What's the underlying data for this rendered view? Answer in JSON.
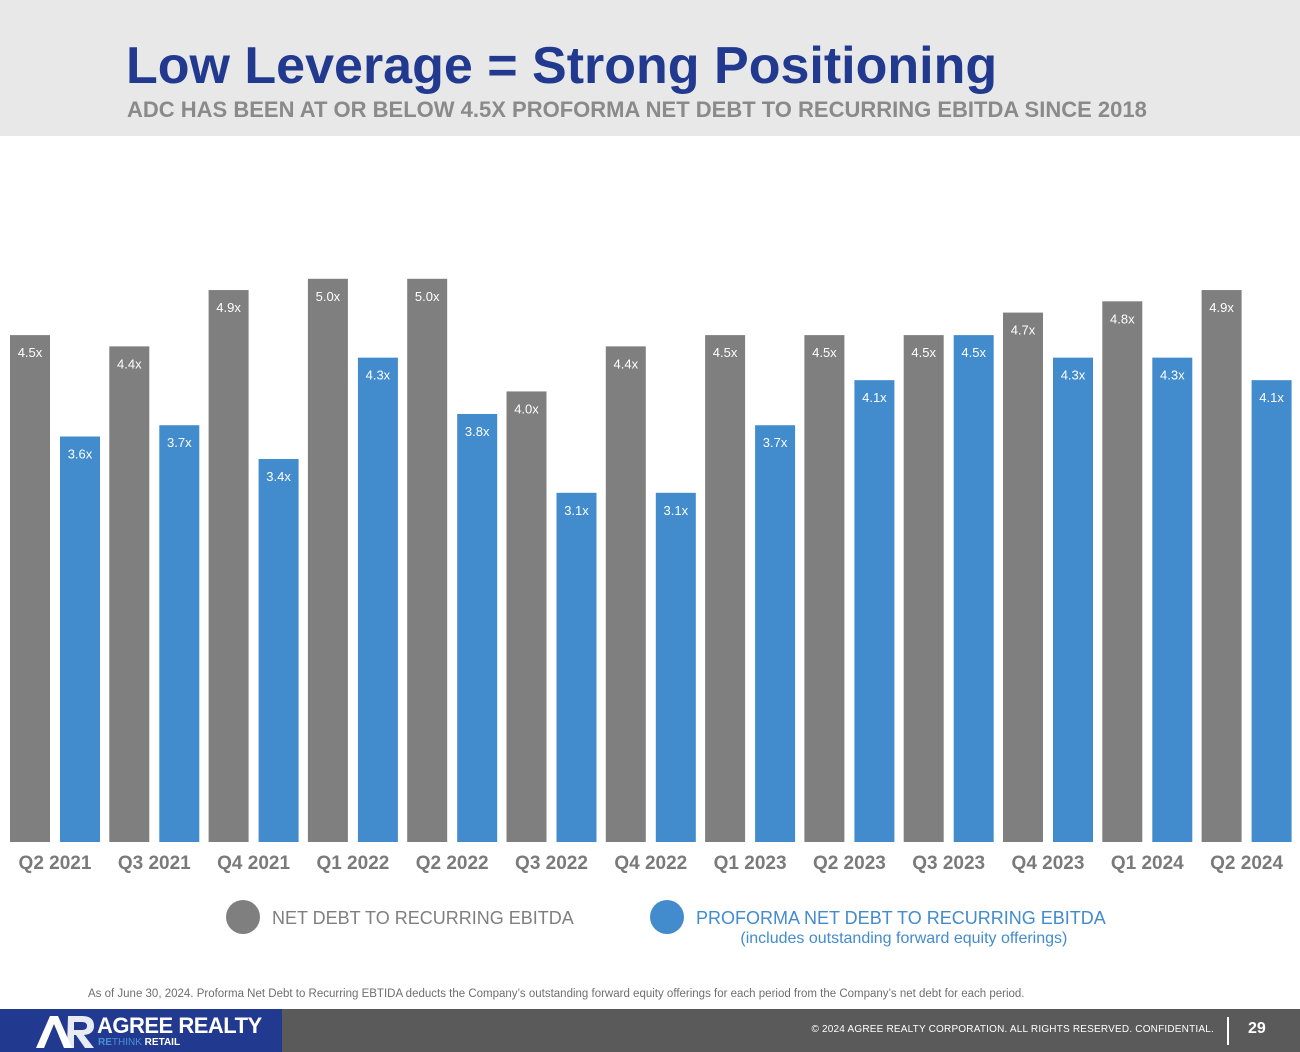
{
  "header": {
    "title": "Low Leverage = Strong Positioning",
    "subtitle": "ADC HAS BEEN AT OR BELOW 4.5X PROFORMA NET DEBT TO RECURRING EBITDA SINCE 2018"
  },
  "chart_data": {
    "type": "bar",
    "title": "",
    "xlabel": "",
    "ylabel": "",
    "ylim": [
      0,
      5.3
    ],
    "grid": false,
    "legend_position": "bottom",
    "categories": [
      "Q2 2021",
      "Q3 2021",
      "Q4 2021",
      "Q1 2022",
      "Q2 2022",
      "Q3 2022",
      "Q4 2022",
      "Q1 2023",
      "Q2 2023",
      "Q3 2023",
      "Q4 2023",
      "Q1 2024",
      "Q2 2024"
    ],
    "series": [
      {
        "name": "NET DEBT TO RECURRING EBITDA",
        "color": "#7f7f7f",
        "values": [
          4.5,
          4.4,
          4.9,
          5.0,
          5.0,
          4.0,
          4.4,
          4.5,
          4.5,
          4.5,
          4.7,
          4.8,
          4.9
        ],
        "labels": [
          "4.5x",
          "4.4x",
          "4.9x",
          "5.0x",
          "5.0x",
          "4.0x",
          "4.4x",
          "4.5x",
          "4.5x",
          "4.5x",
          "4.7x",
          "4.8x",
          "4.9x"
        ]
      },
      {
        "name": "PROFORMA NET DEBT TO RECURRING EBITDA",
        "color": "#428bcd",
        "values": [
          3.6,
          3.7,
          3.4,
          4.3,
          3.8,
          3.1,
          3.1,
          3.7,
          4.1,
          4.5,
          4.3,
          4.3,
          4.1
        ],
        "labels": [
          "3.6x",
          "3.7x",
          "3.4x",
          "4.3x",
          "3.8x",
          "3.1x",
          "3.1x",
          "3.7x",
          "4.1x",
          "4.5x",
          "4.3x",
          "4.3x",
          "4.1x"
        ]
      }
    ]
  },
  "legend": {
    "net_label": "NET DEBT TO RECURRING EBITDA",
    "proforma_label": "PROFORMA NET DEBT TO RECURRING EBITDA",
    "proforma_note": "(includes outstanding forward equity offerings)",
    "net_color": "#7f7f7f",
    "proforma_color": "#428bcd"
  },
  "footnote": "As of June 30, 2024. Proforma Net Debt to Recurring EBTIDA deducts the Company’s outstanding forward equity offerings for each period from the Company’s net debt for each period.",
  "footer": {
    "logo_name": "AGREE REALTY",
    "logo_re": "RE",
    "logo_think": "THINK",
    "logo_retail": " RETAIL",
    "copyright": "© 2024 AGREE REALTY CORPORATION. ALL RIGHTS RESERVED. CONFIDENTIAL.",
    "page_number": "29"
  },
  "colors": {
    "title": "#213a8f",
    "subtitle": "#8a8a8a",
    "header_bg": "#e8e8e8",
    "footer_bg": "#5a5a5a",
    "logo_bg": "#213a8f"
  }
}
